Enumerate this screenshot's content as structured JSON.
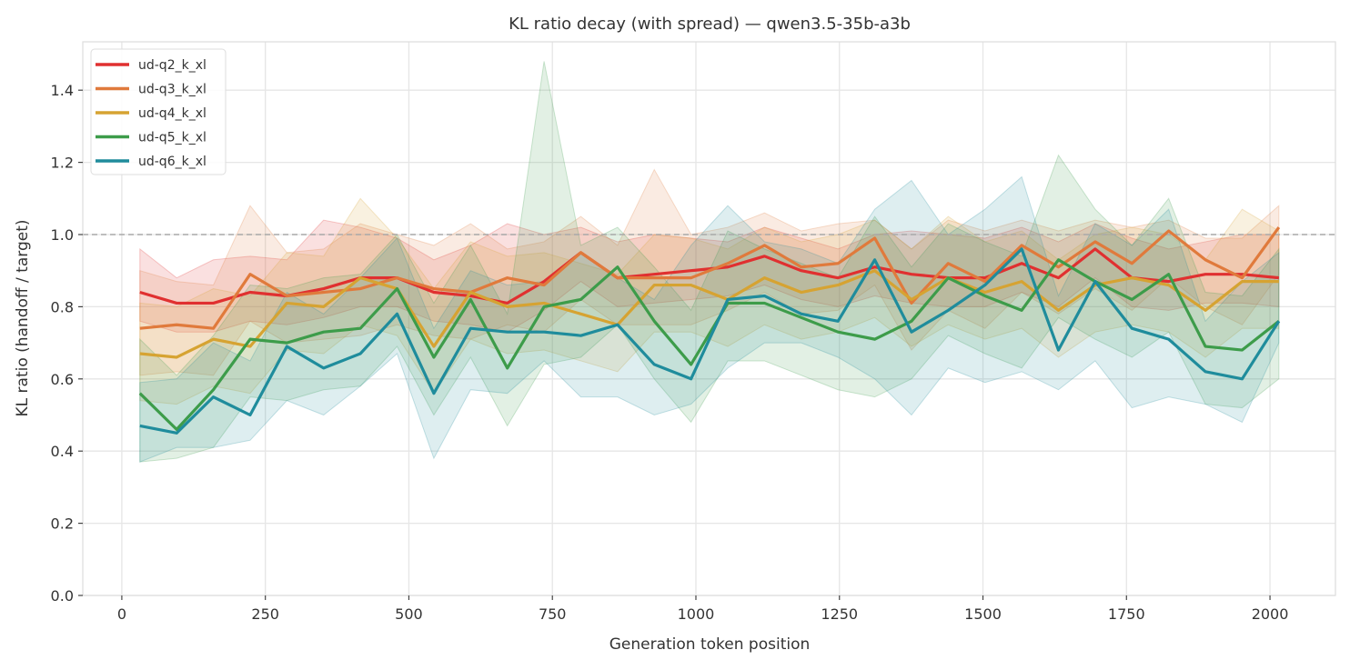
{
  "chart_data": {
    "type": "line",
    "title": "KL ratio decay (with spread) — qwen3.5-35b-a3b",
    "xlabel": "Generation token position",
    "ylabel": "KL ratio (handoff / target)",
    "xlim": [
      -68,
      2114
    ],
    "ylim": [
      0,
      1.534
    ],
    "xticks": [
      0,
      250,
      500,
      750,
      1000,
      1250,
      1500,
      1750,
      2000
    ],
    "xtick_labels": [
      "0",
      "250",
      "500",
      "750",
      "1000",
      "1250",
      "1500",
      "1750",
      "2000"
    ],
    "yticks": [
      0,
      0.2,
      0.4,
      0.6,
      0.8,
      1.0,
      1.2,
      1.4
    ],
    "ytick_labels": [
      "0.0",
      "0.2",
      "0.4",
      "0.6",
      "0.8",
      "1.0",
      "1.2",
      "1.4"
    ],
    "grid": true,
    "legend_position": "top-left",
    "reference_line": {
      "y": 1.0,
      "style": "dashed",
      "color": "#aaaaaa"
    },
    "x": [
      31.5,
      95.5,
      159.5,
      223.5,
      287.5,
      351.5,
      415.5,
      479.5,
      543.5,
      607.5,
      671.5,
      735.5,
      799.5,
      863.5,
      927.5,
      991.5,
      1055.5,
      1119.5,
      1183.5,
      1247.5,
      1311.5,
      1375.5,
      1439.5,
      1503.5,
      1567.5,
      1631.5,
      1695.5,
      1759.5,
      1823.5,
      1887.5,
      1951.5,
      2015.5
    ],
    "series": [
      {
        "name": "ud-q2_k_xl",
        "color": "#e03030",
        "values": [
          0.84,
          0.81,
          0.81,
          0.84,
          0.83,
          0.85,
          0.88,
          0.88,
          0.84,
          0.83,
          0.81,
          0.87,
          0.95,
          0.88,
          0.89,
          0.9,
          0.91,
          0.94,
          0.9,
          0.88,
          0.91,
          0.89,
          0.88,
          0.88,
          0.92,
          0.88,
          0.96,
          0.88,
          0.87,
          0.89,
          0.89,
          0.88
        ],
        "upper": [
          0.96,
          0.88,
          0.93,
          0.94,
          0.93,
          1.04,
          1.02,
          0.99,
          0.93,
          0.97,
          1.03,
          1.0,
          1.02,
          0.98,
          1.0,
          0.99,
          0.98,
          1.02,
          0.99,
          0.96,
          1.0,
          1.01,
          1.0,
          0.99,
          1.02,
          0.98,
          1.03,
          0.99,
          0.96,
          0.98,
          1.0,
          1.0
        ],
        "lower": [
          0.76,
          0.73,
          0.73,
          0.76,
          0.75,
          0.77,
          0.8,
          0.8,
          0.76,
          0.75,
          0.73,
          0.79,
          0.87,
          0.8,
          0.81,
          0.82,
          0.83,
          0.86,
          0.82,
          0.8,
          0.83,
          0.81,
          0.8,
          0.8,
          0.84,
          0.8,
          0.88,
          0.8,
          0.79,
          0.81,
          0.81,
          0.8
        ]
      },
      {
        "name": "ud-q3_k_xl",
        "color": "#e07a3c",
        "values": [
          0.74,
          0.75,
          0.74,
          0.89,
          0.83,
          0.84,
          0.85,
          0.88,
          0.85,
          0.84,
          0.88,
          0.86,
          0.95,
          0.88,
          0.88,
          0.88,
          0.92,
          0.97,
          0.91,
          0.92,
          0.99,
          0.81,
          0.92,
          0.87,
          0.97,
          0.91,
          0.98,
          0.92,
          1.01,
          0.93,
          0.88,
          1.02
        ],
        "upper": [
          0.9,
          0.87,
          0.86,
          1.08,
          0.95,
          0.96,
          1.03,
          1.0,
          0.97,
          1.03,
          0.96,
          0.98,
          1.05,
          0.97,
          1.18,
          1.0,
          1.02,
          1.06,
          1.01,
          1.03,
          1.04,
          0.96,
          1.04,
          1.01,
          1.04,
          1.01,
          1.04,
          1.02,
          1.04,
          0.99,
          0.99,
          1.08
        ],
        "lower": [
          0.61,
          0.62,
          0.61,
          0.76,
          0.7,
          0.71,
          0.72,
          0.75,
          0.72,
          0.71,
          0.75,
          0.73,
          0.82,
          0.75,
          0.75,
          0.75,
          0.79,
          0.84,
          0.78,
          0.79,
          0.86,
          0.68,
          0.79,
          0.74,
          0.84,
          0.78,
          0.85,
          0.79,
          0.88,
          0.8,
          0.75,
          0.89
        ]
      },
      {
        "name": "ud-q4_k_xl",
        "color": "#d6a332",
        "values": [
          0.67,
          0.66,
          0.71,
          0.69,
          0.81,
          0.8,
          0.88,
          0.85,
          0.69,
          0.84,
          0.8,
          0.81,
          0.78,
          0.75,
          0.86,
          0.86,
          0.82,
          0.88,
          0.84,
          0.86,
          0.9,
          0.82,
          0.88,
          0.84,
          0.87,
          0.79,
          0.86,
          0.88,
          0.86,
          0.79,
          0.87,
          0.87
        ],
        "upper": [
          0.81,
          0.8,
          0.85,
          0.83,
          0.95,
          0.94,
          1.1,
          0.99,
          0.85,
          0.98,
          0.94,
          0.95,
          0.92,
          0.89,
          1.0,
          0.99,
          0.96,
          1.02,
          0.98,
          1.0,
          1.04,
          0.96,
          1.05,
          0.98,
          1.01,
          0.93,
          1.0,
          1.02,
          1.0,
          0.93,
          1.07,
          1.01
        ],
        "lower": [
          0.54,
          0.53,
          0.58,
          0.56,
          0.68,
          0.67,
          0.75,
          0.72,
          0.56,
          0.71,
          0.67,
          0.68,
          0.65,
          0.62,
          0.73,
          0.73,
          0.69,
          0.75,
          0.71,
          0.73,
          0.77,
          0.69,
          0.75,
          0.71,
          0.74,
          0.66,
          0.73,
          0.75,
          0.73,
          0.66,
          0.74,
          0.74
        ]
      },
      {
        "name": "ud-q5_k_xl",
        "color": "#3d9c4a",
        "values": [
          0.56,
          0.46,
          0.57,
          0.71,
          0.7,
          0.73,
          0.74,
          0.85,
          0.66,
          0.82,
          0.63,
          0.8,
          0.82,
          0.91,
          0.76,
          0.64,
          0.81,
          0.81,
          0.77,
          0.73,
          0.71,
          0.76,
          0.88,
          0.83,
          0.79,
          0.93,
          0.87,
          0.82,
          0.89,
          0.69,
          0.68,
          0.76
        ],
        "upper": [
          0.71,
          0.61,
          0.72,
          0.86,
          0.85,
          0.88,
          0.89,
          1.0,
          0.81,
          0.97,
          0.78,
          1.48,
          0.97,
          1.02,
          0.91,
          0.79,
          1.01,
          0.96,
          0.92,
          0.88,
          1.05,
          0.91,
          1.03,
          0.98,
          0.94,
          1.22,
          1.07,
          0.97,
          1.1,
          0.84,
          0.83,
          0.96
        ],
        "lower": [
          0.37,
          0.38,
          0.41,
          0.55,
          0.54,
          0.57,
          0.58,
          0.69,
          0.5,
          0.66,
          0.47,
          0.64,
          0.66,
          0.75,
          0.6,
          0.48,
          0.65,
          0.65,
          0.61,
          0.57,
          0.55,
          0.6,
          0.72,
          0.67,
          0.63,
          0.77,
          0.71,
          0.66,
          0.73,
          0.53,
          0.52,
          0.6
        ]
      },
      {
        "name": "ud-q6_k_xl",
        "color": "#1f8c9c",
        "values": [
          0.47,
          0.45,
          0.55,
          0.5,
          0.69,
          0.63,
          0.67,
          0.78,
          0.56,
          0.74,
          0.73,
          0.73,
          0.72,
          0.75,
          0.64,
          0.6,
          0.82,
          0.83,
          0.78,
          0.76,
          0.93,
          0.73,
          0.79,
          0.86,
          0.96,
          0.68,
          0.87,
          0.74,
          0.71,
          0.62,
          0.6,
          0.76
        ],
        "upper": [
          0.59,
          0.6,
          0.7,
          0.65,
          0.84,
          0.78,
          0.88,
          0.99,
          0.74,
          0.9,
          0.86,
          0.87,
          0.95,
          0.88,
          0.82,
          0.97,
          1.08,
          0.98,
          0.96,
          0.92,
          1.07,
          1.15,
          1.0,
          1.07,
          1.16,
          0.83,
          1.03,
          0.97,
          1.07,
          0.76,
          0.87,
          0.95
        ],
        "lower": [
          0.37,
          0.41,
          0.41,
          0.43,
          0.54,
          0.5,
          0.58,
          0.67,
          0.38,
          0.57,
          0.56,
          0.65,
          0.55,
          0.55,
          0.5,
          0.53,
          0.63,
          0.7,
          0.7,
          0.66,
          0.6,
          0.5,
          0.63,
          0.59,
          0.62,
          0.57,
          0.65,
          0.52,
          0.55,
          0.53,
          0.48,
          0.7
        ]
      }
    ]
  }
}
